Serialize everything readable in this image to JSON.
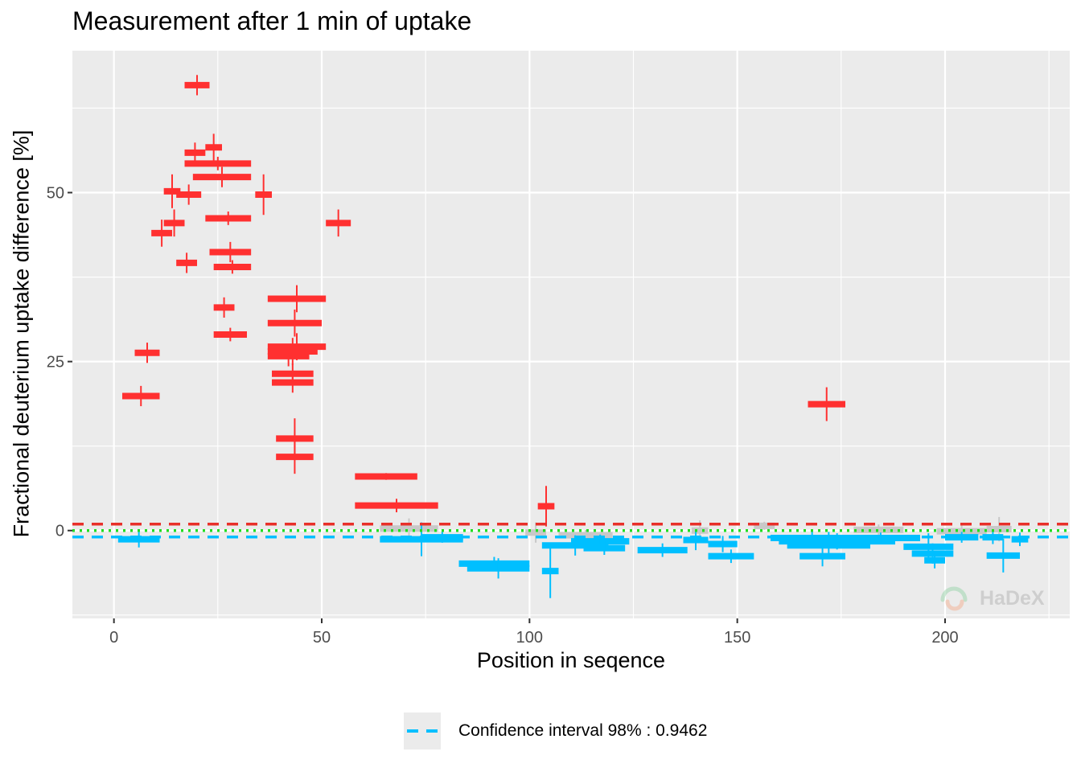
{
  "chart_data": {
    "type": "scatter",
    "title": "Measurement after 1 min of uptake",
    "xlabel": "Position in seqence",
    "ylabel": "Fractional deuterium uptake difference [%]",
    "xlim": [
      -10,
      230
    ],
    "ylim": [
      -13,
      71
    ],
    "x_ticks": [
      0,
      50,
      100,
      150,
      200
    ],
    "y_ticks": [
      0,
      25,
      50
    ],
    "grid": true,
    "confidence_interval": {
      "label": "Confidence interval 98% : 0.9462",
      "value": 0.9462
    },
    "legend": {
      "position": "bottom",
      "entries": [
        "Confidence interval 98% : 0.9462"
      ]
    },
    "colors": {
      "significant_positive": "#ff3030",
      "significant_negative": "#00bfff",
      "insignificant": "#c8c8c8",
      "ci_upper": "#e8302a",
      "ci_lower": "#00bfff",
      "zero": "#22dd22",
      "panel": "#ebebeb",
      "grid": "#ffffff"
    },
    "series": [
      {
        "category": "positive",
        "points": [
          {
            "start": 2,
            "end": 11,
            "y": 19.9,
            "err": 1.5
          },
          {
            "start": 5,
            "end": 11,
            "y": 26.3,
            "err": 1.5
          },
          {
            "start": 9,
            "end": 14,
            "y": 44.0,
            "err": 2.0
          },
          {
            "start": 12,
            "end": 17,
            "y": 45.5,
            "err": 2.0
          },
          {
            "start": 12,
            "end": 16,
            "y": 50.2,
            "err": 2.5
          },
          {
            "start": 15,
            "end": 20,
            "y": 39.6,
            "err": 1.5
          },
          {
            "start": 15,
            "end": 21,
            "y": 49.7,
            "err": 1.5
          },
          {
            "start": 17,
            "end": 23,
            "y": 65.9,
            "err": 1.5
          },
          {
            "start": 17,
            "end": 22,
            "y": 55.9,
            "err": 1.5
          },
          {
            "start": 17,
            "end": 33,
            "y": 54.3,
            "err": 1.0
          },
          {
            "start": 22,
            "end": 26,
            "y": 56.7,
            "err": 2.0
          },
          {
            "start": 19,
            "end": 33,
            "y": 52.3,
            "err": 1.5
          },
          {
            "start": 22,
            "end": 33,
            "y": 46.2,
            "err": 1.0
          },
          {
            "start": 23,
            "end": 33,
            "y": 41.2,
            "err": 1.5
          },
          {
            "start": 24,
            "end": 33,
            "y": 39.0,
            "err": 1.0
          },
          {
            "start": 24,
            "end": 29,
            "y": 33.0,
            "err": 1.5
          },
          {
            "start": 24,
            "end": 32,
            "y": 29.0,
            "err": 1.0
          },
          {
            "start": 34,
            "end": 38,
            "y": 49.7,
            "err": 3.0
          },
          {
            "start": 37,
            "end": 51,
            "y": 34.3,
            "err": 2.0
          },
          {
            "start": 37,
            "end": 50,
            "y": 30.7,
            "err": 2.0
          },
          {
            "start": 37,
            "end": 51,
            "y": 27.2,
            "err": 2.0
          },
          {
            "start": 37,
            "end": 49,
            "y": 26.5,
            "err": 2.0
          },
          {
            "start": 37,
            "end": 47,
            "y": 25.8,
            "err": 1.5
          },
          {
            "start": 38,
            "end": 48,
            "y": 23.2,
            "err": 1.5
          },
          {
            "start": 38,
            "end": 48,
            "y": 21.9,
            "err": 1.5
          },
          {
            "start": 39,
            "end": 48,
            "y": 13.6,
            "err": 3.0
          },
          {
            "start": 39,
            "end": 48,
            "y": 10.9,
            "err": 2.5
          },
          {
            "start": 51,
            "end": 57,
            "y": 45.5,
            "err": 2.0
          },
          {
            "start": 58,
            "end": 73,
            "y": 8.0,
            "err": 0.5
          },
          {
            "start": 58,
            "end": 78,
            "y": 3.7,
            "err": 1.0
          },
          {
            "start": 102,
            "end": 106,
            "y": 3.6,
            "err": 3.0
          },
          {
            "start": 167,
            "end": 176,
            "y": 18.7,
            "err": 2.5
          }
        ]
      },
      {
        "category": "negative",
        "points": [
          {
            "start": 1,
            "end": 11,
            "y": -1.3,
            "err": 1.2
          },
          {
            "start": 64,
            "end": 84,
            "y": -1.3,
            "err": 2.5
          },
          {
            "start": 74,
            "end": 84,
            "y": -1.0,
            "err": 0.8
          },
          {
            "start": 83,
            "end": 100,
            "y": -4.9,
            "err": 1.0
          },
          {
            "start": 85,
            "end": 100,
            "y": -5.6,
            "err": 1.5
          },
          {
            "start": 103,
            "end": 119,
            "y": -2.2,
            "err": 1.5
          },
          {
            "start": 103,
            "end": 107,
            "y": -6.0,
            "err": 4.0
          },
          {
            "start": 110,
            "end": 124,
            "y": -1.6,
            "err": 1.0
          },
          {
            "start": 113,
            "end": 123,
            "y": -2.6,
            "err": 1.0
          },
          {
            "start": 126,
            "end": 138,
            "y": -2.9,
            "err": 1.0
          },
          {
            "start": 137,
            "end": 143,
            "y": -1.4,
            "err": 1.5
          },
          {
            "start": 143,
            "end": 150,
            "y": -2.0,
            "err": 1.2
          },
          {
            "start": 143,
            "end": 154,
            "y": -3.8,
            "err": 1.0
          },
          {
            "start": 158,
            "end": 178,
            "y": -1.1,
            "err": 1.0
          },
          {
            "start": 160,
            "end": 188,
            "y": -1.6,
            "err": 1.2
          },
          {
            "start": 162,
            "end": 182,
            "y": -2.2,
            "err": 2.0
          },
          {
            "start": 165,
            "end": 176,
            "y": -3.8,
            "err": 1.5
          },
          {
            "start": 175,
            "end": 194,
            "y": -1.1,
            "err": 0.8
          },
          {
            "start": 190,
            "end": 202,
            "y": -2.4,
            "err": 2.0
          },
          {
            "start": 192,
            "end": 202,
            "y": -3.4,
            "err": 1.5
          },
          {
            "start": 195,
            "end": 200,
            "y": -4.4,
            "err": 1.2
          },
          {
            "start": 200,
            "end": 208,
            "y": -1.0,
            "err": 0.8
          },
          {
            "start": 210,
            "end": 218,
            "y": -3.7,
            "err": 2.5
          },
          {
            "start": 209,
            "end": 214,
            "y": -1.0,
            "err": 1.0
          },
          {
            "start": 216,
            "end": 220,
            "y": -1.3,
            "err": 1.0
          }
        ]
      },
      {
        "category": "insignificant",
        "points": [
          {
            "start": 64,
            "end": 78,
            "y": 0.3,
            "err": 1.5
          },
          {
            "start": 99,
            "end": 104,
            "y": -0.3,
            "err": 1.5
          },
          {
            "start": 107,
            "end": 120,
            "y": -0.7,
            "err": 0.8
          },
          {
            "start": 139,
            "end": 143,
            "y": 0.0,
            "err": 1.5
          },
          {
            "start": 154,
            "end": 159,
            "y": 0.7,
            "err": 0.6
          },
          {
            "start": 178,
            "end": 190,
            "y": 0.1,
            "err": 0.8
          },
          {
            "start": 198,
            "end": 210,
            "y": -0.1,
            "err": 1.2
          },
          {
            "start": 210,
            "end": 216,
            "y": 0.2,
            "err": 1.8
          }
        ]
      }
    ]
  },
  "watermark": {
    "text": "HaDeX"
  }
}
